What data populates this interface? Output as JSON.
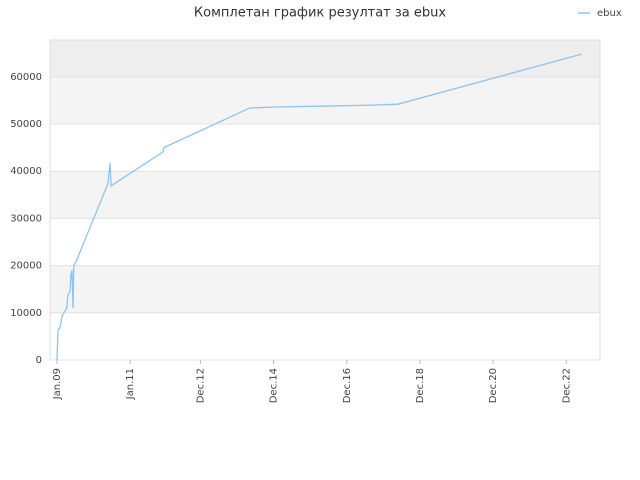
{
  "chart_data": {
    "type": "line",
    "title": "Комплетан график резултат за ebux",
    "x": [
      2009.0,
      2009.03,
      2009.08,
      2009.14,
      2009.19,
      2009.27,
      2009.3,
      2009.36,
      2009.38,
      2009.41,
      2009.44,
      2009.46,
      2009.52,
      2010.39,
      2010.45,
      2010.48,
      2011.9,
      2011.92,
      2014.27,
      2014.96,
      2016.32,
      2017.61,
      2018.32,
      2023.34
    ],
    "series": [
      {
        "name": "ebux",
        "color": "#8ec4f0",
        "values": [
          0,
          6400,
          6800,
          9300,
          10000,
          11000,
          13800,
          14600,
          18000,
          19000,
          11000,
          20100,
          20800,
          37300,
          41700,
          36900,
          44100,
          45000,
          53400,
          53600,
          53800,
          54000,
          54200,
          64800
        ]
      }
    ],
    "xlim": [
      2008.81,
      2023.84
    ],
    "xticks": [
      {
        "value": 2009.0,
        "label": "Jan.09"
      },
      {
        "value": 2011.0,
        "label": "Jan.11"
      },
      {
        "value": 2012.92,
        "label": "Dec.12"
      },
      {
        "value": 2014.92,
        "label": "Dec.14"
      },
      {
        "value": 2016.92,
        "label": "Dec.16"
      },
      {
        "value": 2018.92,
        "label": "Dec.18"
      },
      {
        "value": 2020.92,
        "label": "Dec.20"
      },
      {
        "value": 2022.92,
        "label": "Dec.22"
      }
    ],
    "ylim": [
      0,
      67800
    ],
    "yticks": [
      0,
      10000,
      20000,
      30000,
      40000,
      50000,
      60000
    ],
    "grid": true,
    "legend": "top-right"
  }
}
